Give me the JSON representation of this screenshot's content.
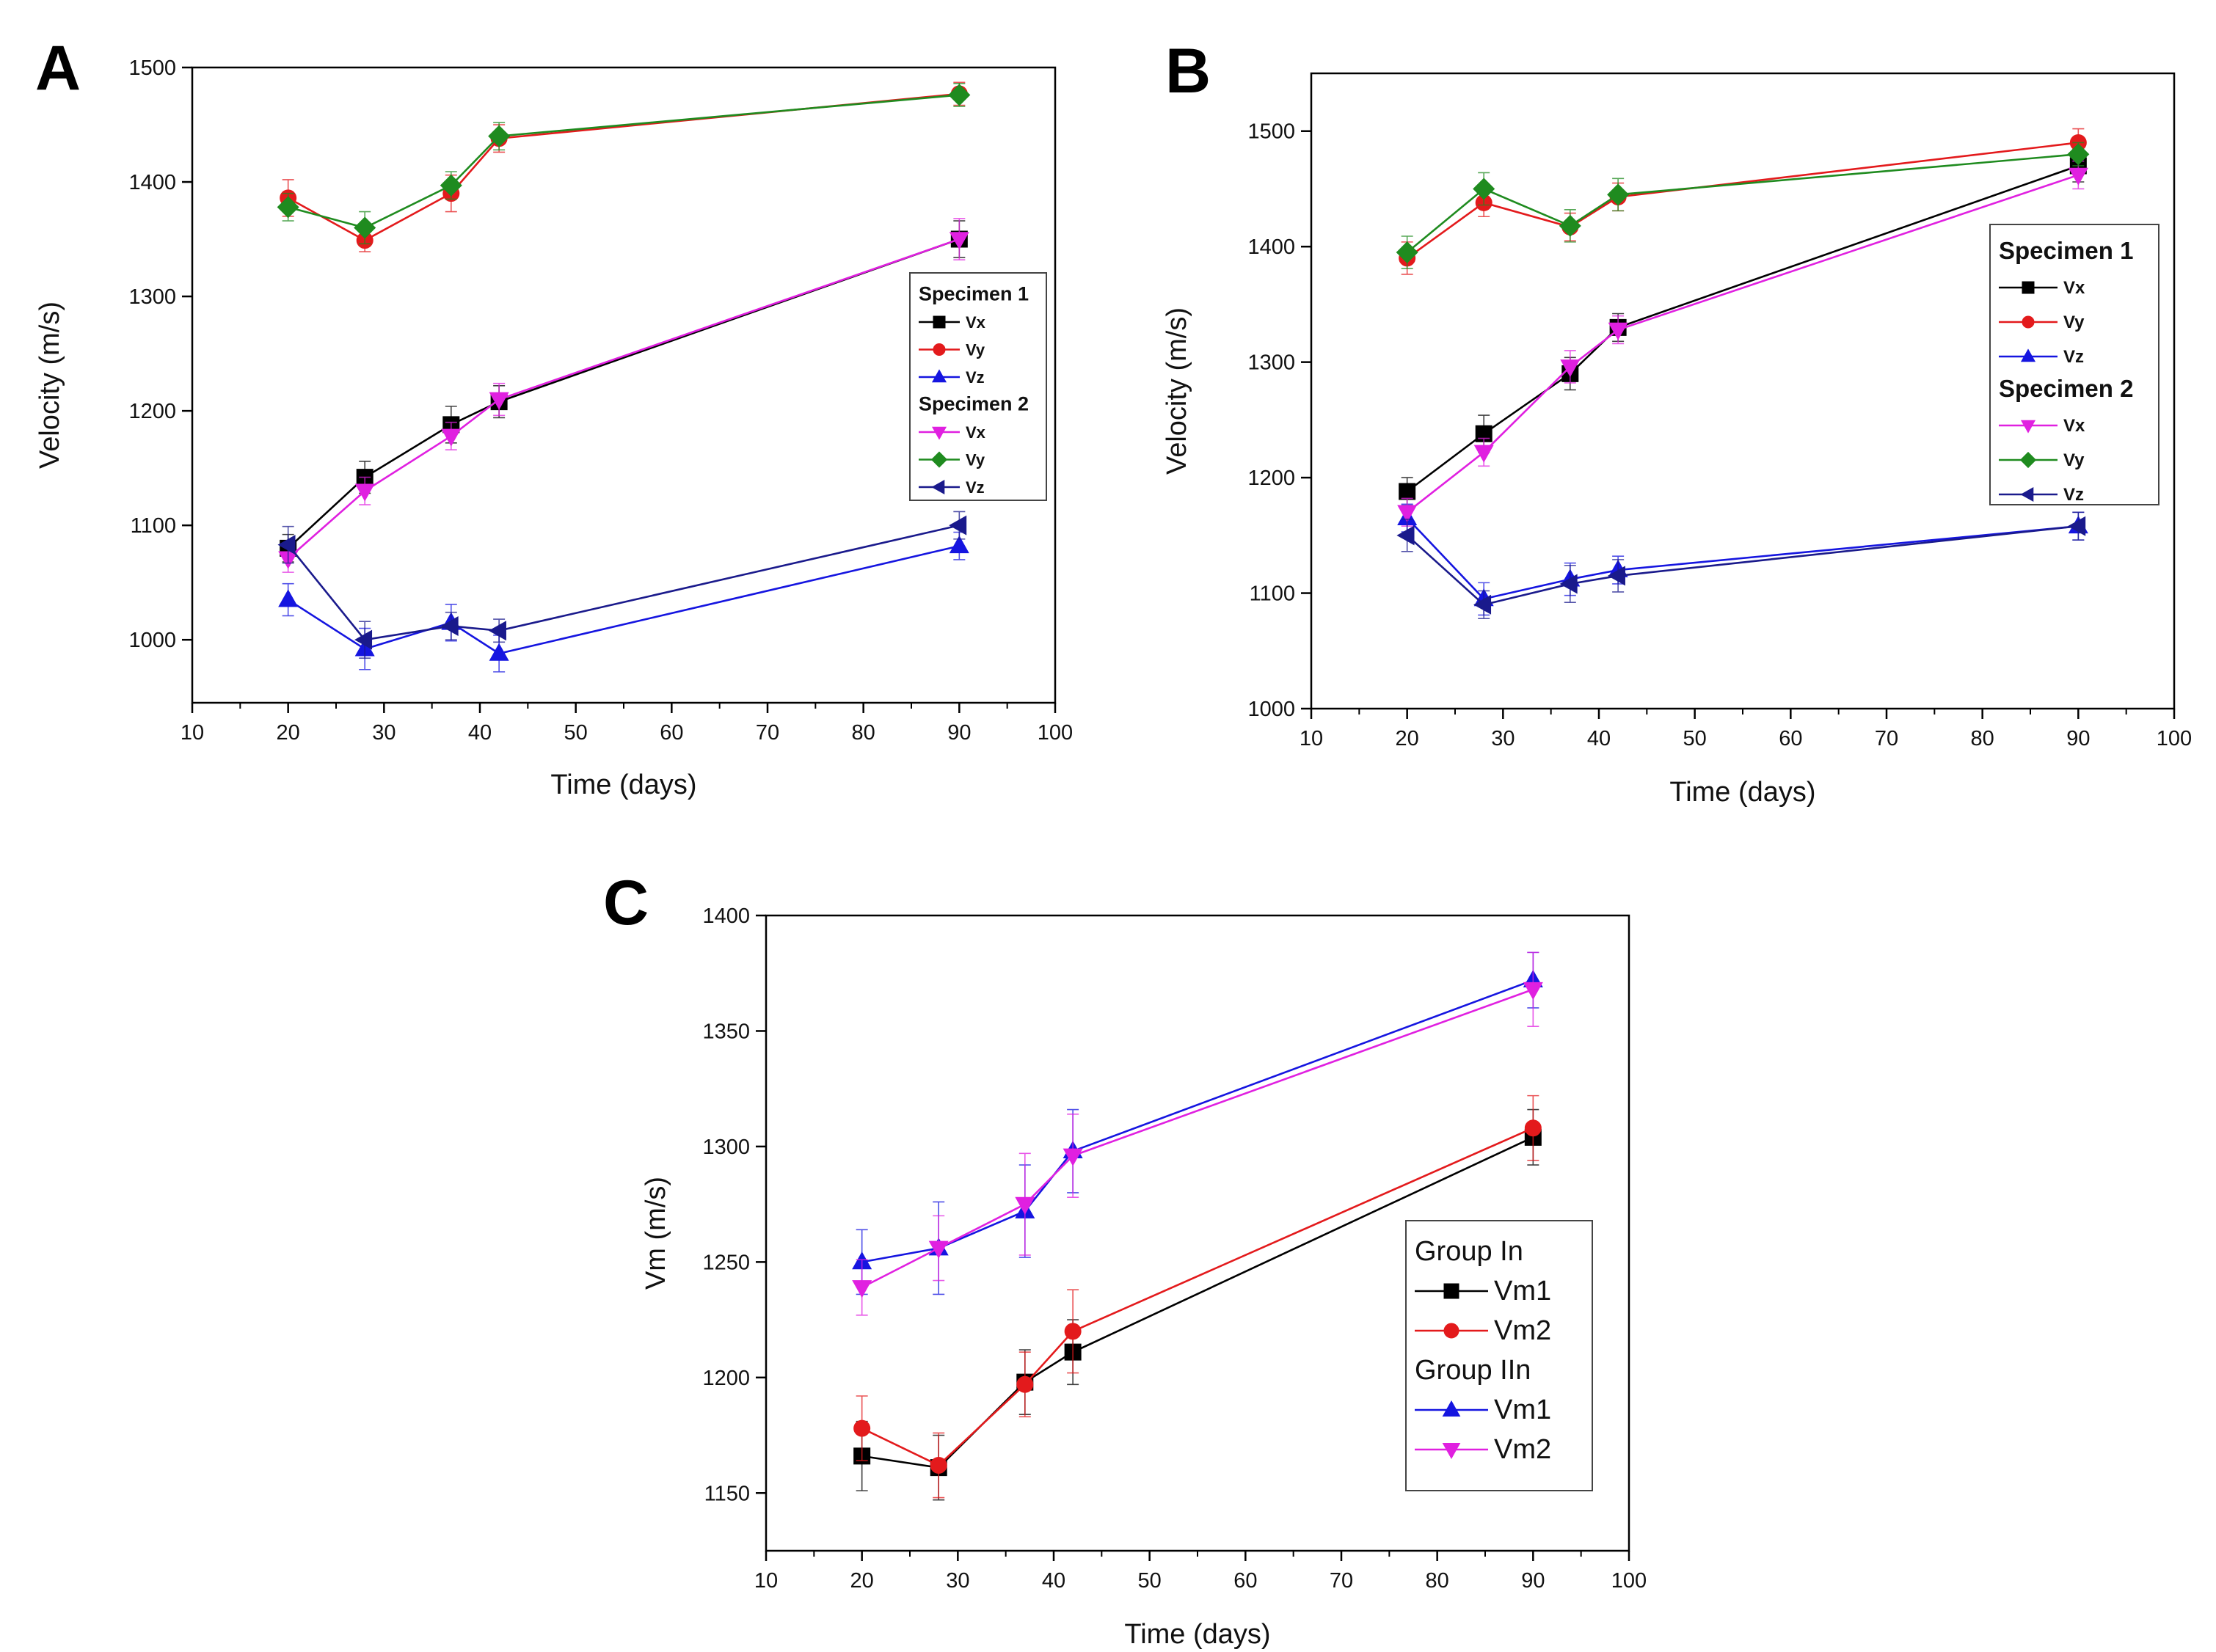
{
  "chart_data": [
    {
      "panel": "A",
      "type": "line",
      "xlabel": "Time (days)",
      "ylabel": "Velocity (m/s)",
      "xlim": [
        10,
        100
      ],
      "ylim": [
        945,
        1500
      ],
      "xticks": [
        10,
        20,
        30,
        40,
        50,
        60,
        70,
        80,
        90,
        100
      ],
      "yticks": [
        1000,
        1100,
        1200,
        1300,
        1400,
        1500
      ],
      "legend_groups": [
        {
          "title": "Specimen 1",
          "items": [
            "Vx",
            "Vy",
            "Vz"
          ]
        },
        {
          "title": "Specimen 2",
          "items": [
            "Vx",
            "Vy",
            "Vz"
          ]
        }
      ],
      "series": [
        {
          "group": "Specimen 1",
          "name": "Vx",
          "color": "#000000",
          "marker": "square",
          "x": [
            20,
            28,
            37,
            42,
            90
          ],
          "values": [
            1080,
            1142,
            1188,
            1208,
            1350
          ],
          "err": [
            12,
            14,
            16,
            14,
            16
          ]
        },
        {
          "group": "Specimen 1",
          "name": "Vy",
          "color": "#e31a1c",
          "marker": "circle",
          "x": [
            20,
            28,
            37,
            42,
            90
          ],
          "values": [
            1386,
            1349,
            1390,
            1438,
            1477
          ],
          "err": [
            16,
            10,
            16,
            12,
            10
          ]
        },
        {
          "group": "Specimen 1",
          "name": "Vz",
          "color": "#1515e0",
          "marker": "triangle-up",
          "x": [
            20,
            28,
            37,
            42,
            90
          ],
          "values": [
            1035,
            992,
            1015,
            988,
            1082
          ],
          "err": [
            14,
            18,
            16,
            16,
            12
          ]
        },
        {
          "group": "Specimen 2",
          "name": "Vx",
          "color": "#e020e0",
          "marker": "triangle-down",
          "x": [
            20,
            28,
            37,
            42,
            90
          ],
          "values": [
            1071,
            1130,
            1178,
            1210,
            1350
          ],
          "err": [
            12,
            12,
            12,
            14,
            18
          ]
        },
        {
          "group": "Specimen 2",
          "name": "Vy",
          "color": "#1f8b1f",
          "marker": "diamond",
          "x": [
            20,
            28,
            37,
            42,
            90
          ],
          "values": [
            1378,
            1360,
            1397,
            1440,
            1476
          ],
          "err": [
            12,
            14,
            12,
            12,
            10
          ]
        },
        {
          "group": "Specimen 2",
          "name": "Vz",
          "color": "#1a1a8c",
          "marker": "triangle-left",
          "x": [
            20,
            28,
            37,
            42,
            90
          ],
          "values": [
            1083,
            1000,
            1012,
            1008,
            1100
          ],
          "err": [
            16,
            16,
            12,
            10,
            12
          ]
        }
      ]
    },
    {
      "panel": "B",
      "type": "line",
      "xlabel": "Time (days)",
      "ylabel": "Velocity (m/s)",
      "xlim": [
        10,
        100
      ],
      "ylim": [
        1000,
        1550
      ],
      "xticks": [
        10,
        20,
        30,
        40,
        50,
        60,
        70,
        80,
        90,
        100
      ],
      "yticks": [
        1000,
        1100,
        1200,
        1300,
        1400,
        1500
      ],
      "legend_groups": [
        {
          "title": "Specimen 1",
          "items": [
            "Vx",
            "Vy",
            "Vz"
          ]
        },
        {
          "title": "Specimen 2",
          "items": [
            "Vx",
            "Vy",
            "Vz"
          ]
        }
      ],
      "series": [
        {
          "group": "Specimen 1",
          "name": "Vx",
          "color": "#000000",
          "marker": "square",
          "x": [
            20,
            28,
            37,
            42,
            90
          ],
          "values": [
            1188,
            1238,
            1290,
            1330,
            1470
          ],
          "err": [
            12,
            16,
            14,
            12,
            14
          ]
        },
        {
          "group": "Specimen 1",
          "name": "Vy",
          "color": "#e31a1c",
          "marker": "circle",
          "x": [
            20,
            28,
            37,
            42,
            90
          ],
          "values": [
            1390,
            1438,
            1417,
            1443,
            1490
          ],
          "err": [
            14,
            12,
            12,
            12,
            12
          ]
        },
        {
          "group": "Specimen 1",
          "name": "Vz",
          "color": "#1515e0",
          "marker": "triangle-up",
          "x": [
            20,
            28,
            37,
            42,
            90
          ],
          "values": [
            1165,
            1095,
            1112,
            1120,
            1158
          ],
          "err": [
            12,
            14,
            14,
            12,
            12
          ]
        },
        {
          "group": "Specimen 2",
          "name": "Vx",
          "color": "#e020e0",
          "marker": "triangle-down",
          "x": [
            20,
            28,
            37,
            42,
            90
          ],
          "values": [
            1170,
            1222,
            1296,
            1328,
            1462
          ],
          "err": [
            12,
            12,
            14,
            12,
            12
          ]
        },
        {
          "group": "Specimen 2",
          "name": "Vy",
          "color": "#1f8b1f",
          "marker": "diamond",
          "x": [
            20,
            28,
            37,
            42,
            90
          ],
          "values": [
            1395,
            1450,
            1418,
            1445,
            1480
          ],
          "err": [
            14,
            14,
            14,
            14,
            10
          ]
        },
        {
          "group": "Specimen 2",
          "name": "Vz",
          "color": "#1a1a8c",
          "marker": "triangle-left",
          "x": [
            20,
            28,
            37,
            42,
            90
          ],
          "values": [
            1150,
            1090,
            1108,
            1115,
            1158
          ],
          "err": [
            14,
            12,
            16,
            14,
            12
          ]
        }
      ]
    },
    {
      "panel": "C",
      "type": "line",
      "xlabel": "Time (days)",
      "ylabel": "Vm (m/s)",
      "xlim": [
        10,
        100
      ],
      "ylim": [
        1125,
        1400
      ],
      "xticks": [
        10,
        20,
        30,
        40,
        50,
        60,
        70,
        80,
        90,
        100
      ],
      "yticks": [
        1150,
        1200,
        1250,
        1300,
        1350,
        1400
      ],
      "legend_groups": [
        {
          "title": "Group In",
          "items": [
            "Vm1",
            "Vm2"
          ]
        },
        {
          "title": "Group IIn",
          "items": [
            "Vm1",
            "Vm2"
          ]
        }
      ],
      "series": [
        {
          "group": "Group In",
          "name": "Vm1",
          "color": "#000000",
          "marker": "square",
          "x": [
            20,
            28,
            37,
            42,
            90
          ],
          "values": [
            1166,
            1161,
            1198,
            1211,
            1304
          ],
          "err": [
            15,
            14,
            14,
            14,
            12
          ]
        },
        {
          "group": "Group In",
          "name": "Vm2",
          "color": "#e31a1c",
          "marker": "circle",
          "x": [
            20,
            28,
            37,
            42,
            90
          ],
          "values": [
            1178,
            1162,
            1197,
            1220,
            1308
          ],
          "err": [
            14,
            14,
            14,
            18,
            14
          ]
        },
        {
          "group": "Group IIn",
          "name": "Vm1",
          "color": "#1515e0",
          "marker": "triangle-up",
          "x": [
            20,
            28,
            37,
            42,
            90
          ],
          "values": [
            1250,
            1256,
            1272,
            1298,
            1372
          ],
          "err": [
            14,
            20,
            20,
            18,
            12
          ]
        },
        {
          "group": "Group IIn",
          "name": "Vm2",
          "color": "#e020e0",
          "marker": "triangle-down",
          "x": [
            20,
            28,
            37,
            42,
            90
          ],
          "values": [
            1239,
            1256,
            1275,
            1296,
            1368
          ],
          "err": [
            12,
            14,
            22,
            18,
            16
          ]
        }
      ]
    }
  ]
}
